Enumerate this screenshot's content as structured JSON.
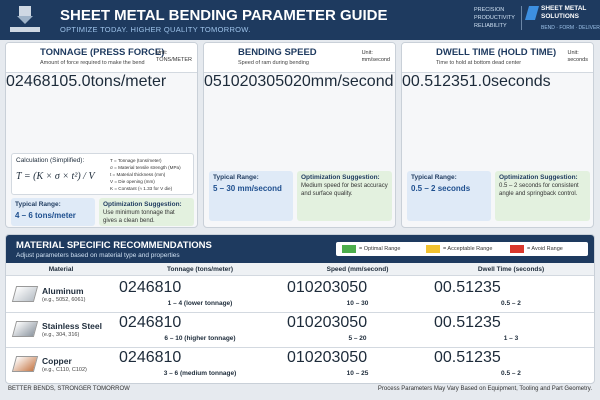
{
  "header": {
    "title": "SHEET METAL BENDING PARAMETER GUIDE",
    "subtitle": "OPTIMIZE TODAY. HIGHER QUALITY TOMORROW.",
    "tags": [
      "PRECISION",
      "PRODUCTIVITY",
      "RELIABILITY"
    ],
    "logo": [
      "SHEET METAL",
      "SOLUTIONS"
    ],
    "logo_tagline": "BEND · FORM · DELIVER"
  },
  "gauges": [
    {
      "title": "TONNAGE (PRESS FORCE)",
      "subtitle": "Amount of force required to make the bend",
      "unit_label": "Unit:",
      "unit": "TONS/METER",
      "ticks": [
        0,
        2,
        4,
        6,
        8,
        10
      ],
      "value": 5,
      "value_label": "5.0",
      "value_unit": "tons/meter",
      "bands": [
        {
          "from": 0,
          "to": 2,
          "color": "#d9382c"
        },
        {
          "from": 2,
          "to": 4,
          "color": "#f2c230"
        },
        {
          "from": 4,
          "to": 6,
          "color": "#4cae4c"
        },
        {
          "from": 6,
          "to": 8,
          "color": "#f2c230"
        },
        {
          "from": 8,
          "to": 10,
          "color": "#d9382c"
        }
      ],
      "range_title": "Typical Range:",
      "range": "4 – 6 tons/meter",
      "suggestion_title": "Optimization Suggestion:",
      "suggestion": "Use minimum tonnage that gives a clean bend."
    },
    {
      "title": "BENDING SPEED",
      "subtitle": "Speed of ram during bending",
      "unit_label": "Unit:",
      "unit": "mm/second",
      "ticks": [
        0,
        5,
        10,
        20,
        30,
        50
      ],
      "value": 20,
      "value_label": "20",
      "value_unit": "mm/second",
      "bands": [
        {
          "from": 0,
          "to": 5,
          "color": "#d9382c"
        },
        {
          "from": 5,
          "to": 10,
          "color": "#f2c230"
        },
        {
          "from": 10,
          "to": 30,
          "color": "#4cae4c"
        },
        {
          "from": 30,
          "to": 40,
          "color": "#f2c230"
        },
        {
          "from": 40,
          "to": 50,
          "color": "#d9382c"
        }
      ],
      "range_title": "Typical Range:",
      "range": "5 – 30 mm/second",
      "suggestion_title": "Optimization Suggestion:",
      "suggestion": "Medium speed for best accuracy and surface quality."
    },
    {
      "title": "DWELL TIME (HOLD TIME)",
      "subtitle": "Time to hold at bottom dead center",
      "unit_label": "Unit:",
      "unit": "seconds",
      "ticks": [
        0,
        0.5,
        1,
        2,
        3,
        5
      ],
      "value": 1,
      "value_label": "1.0",
      "value_unit": "seconds",
      "bands": [
        {
          "from": 0,
          "to": 0.5,
          "color": "#d9382c"
        },
        {
          "from": 0.5,
          "to": 2,
          "color": "#4cae4c"
        },
        {
          "from": 2,
          "to": 3,
          "color": "#f2c230"
        },
        {
          "from": 3,
          "to": 5,
          "color": "#d9382c"
        }
      ],
      "range_title": "Typical Range:",
      "range": "0.5 – 2 seconds",
      "suggestion_title": "Optimization Suggestion:",
      "suggestion": "0.5 – 2 seconds for consistent angle and springback control."
    }
  ],
  "formula": {
    "title": "Calculation (Simplified):",
    "equation": "T = (K × σ × t²) / V",
    "legend": [
      "T = Tonnage (tons/meter)",
      "σ = Material tensile strength (MPa)",
      "t = Material thickness (mm)",
      "V = Die opening (mm)",
      "K = Constant (≈ 1.33 for V die)"
    ]
  },
  "materials": {
    "title": "MATERIAL SPECIFIC RECOMMENDATIONS",
    "subtitle": "Adjust parameters based on material type and properties",
    "legend": [
      {
        "label": "= Optimal Range",
        "color": "#4cae4c"
      },
      {
        "label": "= Acceptable Range",
        "color": "#f2c230"
      },
      {
        "label": "= Avoid Range",
        "color": "#d9382c"
      }
    ],
    "material_header": "Material",
    "columns": [
      {
        "title": "Tonnage (tons/meter)",
        "ticks": [
          0,
          2,
          4,
          6,
          8,
          10
        ]
      },
      {
        "title": "Speed (mm/second)",
        "ticks": [
          0,
          10,
          20,
          30,
          50
        ]
      },
      {
        "title": "Dwell Time (seconds)",
        "ticks": [
          0,
          0.5,
          1,
          2,
          3,
          5
        ]
      }
    ],
    "rows": [
      {
        "name": "Aluminum",
        "note": "(e.g., 5052, 6061)",
        "color": "#b9c0c7",
        "cells": [
          {
            "range": [
              1,
              4
            ],
            "label": "1 – 4 (lower tonnage)"
          },
          {
            "range": [
              10,
              30
            ],
            "label": "10 – 30"
          },
          {
            "range": [
              0.5,
              2
            ],
            "label": "0.5 – 2"
          }
        ]
      },
      {
        "name": "Stainless Steel",
        "note": "(e.g., 304, 316)",
        "color": "#8f98a2",
        "cells": [
          {
            "range": [
              6,
              10
            ],
            "label": "6 – 10 (higher tonnage)"
          },
          {
            "range": [
              5,
              20
            ],
            "label": "5 – 20"
          },
          {
            "range": [
              1,
              3
            ],
            "label": "1 – 3"
          }
        ]
      },
      {
        "name": "Copper",
        "note": "(e.g., C110, C102)",
        "color": "#c77a4a",
        "cells": [
          {
            "range": [
              3,
              6
            ],
            "label": "3 – 6 (medium tonnage)"
          },
          {
            "range": [
              10,
              25
            ],
            "label": "10 – 25"
          },
          {
            "range": [
              0.5,
              2
            ],
            "label": "0.5 – 2"
          }
        ]
      }
    ]
  },
  "footer": {
    "left": "BETTER BENDS, STRONGER TOMORROW",
    "right": "Process Parameters May Vary Based on Equipment, Tooling and Part Geometry."
  }
}
